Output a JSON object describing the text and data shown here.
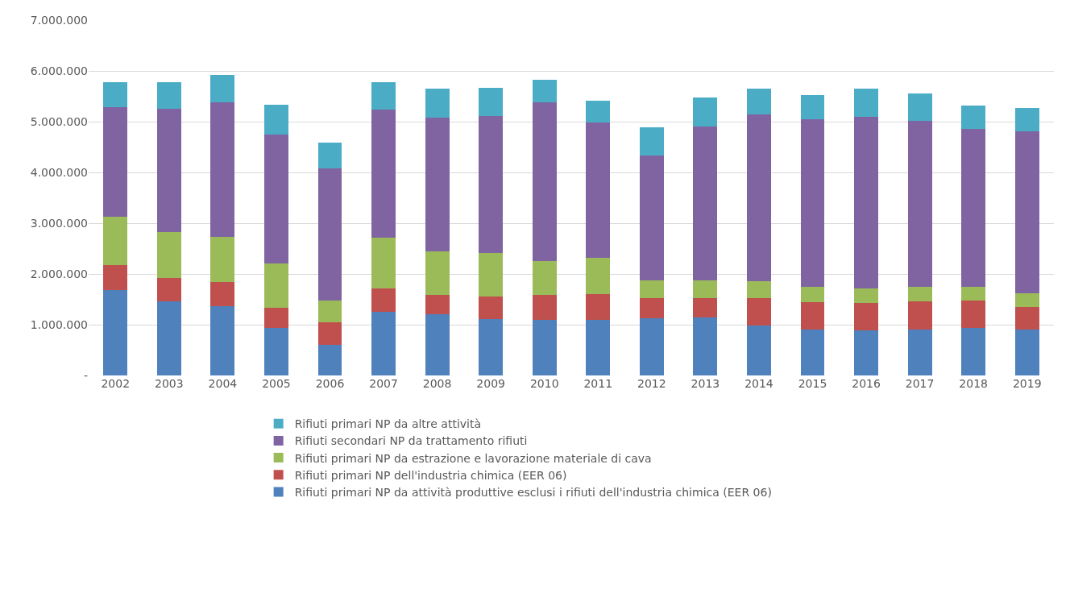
{
  "chart_data": {
    "type": "bar",
    "stacked": true,
    "categories": [
      "2002",
      "2003",
      "2004",
      "2005",
      "2006",
      "2007",
      "2008",
      "2009",
      "2010",
      "2011",
      "2012",
      "2013",
      "2014",
      "2015",
      "2016",
      "2017",
      "2018",
      "2019"
    ],
    "series": [
      {
        "name": "Rifiuti primari NP da attività produttive esclusi i rifiuti dell'industria chimica (EER 06)",
        "color": "#4f81bd",
        "values": [
          1690000,
          1460000,
          1360000,
          940000,
          600000,
          1260000,
          1200000,
          1110000,
          1090000,
          1090000,
          1130000,
          1150000,
          990000,
          910000,
          890000,
          910000,
          930000,
          910000
        ]
      },
      {
        "name": "Rifiuti primari NP dell'industria chimica (EER 06)",
        "color": "#c0504d",
        "values": [
          480000,
          460000,
          480000,
          400000,
          440000,
          460000,
          380000,
          450000,
          490000,
          510000,
          400000,
          380000,
          540000,
          530000,
          540000,
          550000,
          540000,
          440000
        ]
      },
      {
        "name": "Rifiuti primari NP da estrazione e lavorazione materiale di cava",
        "color": "#9bbb59",
        "values": [
          960000,
          900000,
          890000,
          870000,
          430000,
          1000000,
          860000,
          850000,
          670000,
          720000,
          340000,
          340000,
          330000,
          310000,
          280000,
          290000,
          280000,
          270000
        ]
      },
      {
        "name": "Rifiuti secondari NP da trattamento rifiuti",
        "color": "#8064a2",
        "values": [
          2150000,
          2430000,
          2650000,
          2540000,
          2610000,
          2520000,
          2640000,
          2700000,
          3130000,
          2670000,
          2460000,
          3040000,
          3290000,
          3300000,
          3390000,
          3270000,
          3110000,
          3190000
        ]
      },
      {
        "name": "Rifiuti primari NP da altre attività",
        "color": "#4bacc6",
        "values": [
          500000,
          530000,
          540000,
          590000,
          500000,
          540000,
          570000,
          550000,
          450000,
          430000,
          560000,
          570000,
          500000,
          480000,
          550000,
          530000,
          460000,
          460000
        ]
      }
    ],
    "ylim": [
      0,
      7000000
    ],
    "yticks": [
      {
        "value": 0,
        "label": "-"
      },
      {
        "value": 1000000,
        "label": "1.000.000"
      },
      {
        "value": 2000000,
        "label": "2.000.000"
      },
      {
        "value": 3000000,
        "label": "3.000.000"
      },
      {
        "value": 4000000,
        "label": "4.000.000"
      },
      {
        "value": 5000000,
        "label": "5.000.000"
      },
      {
        "value": 6000000,
        "label": "6.000.000"
      },
      {
        "value": 7000000,
        "label": "7.000.000"
      }
    ],
    "grid": "y",
    "legend": "bottom"
  }
}
